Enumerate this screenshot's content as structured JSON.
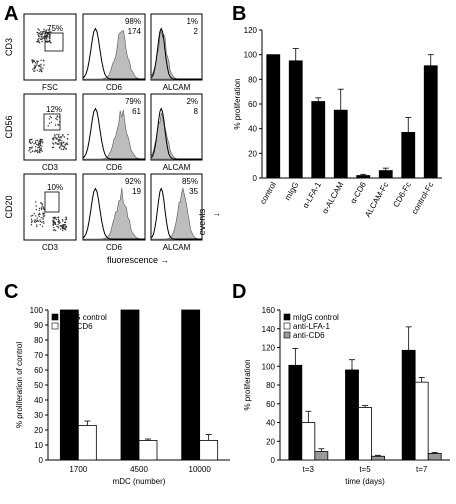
{
  "panel_letters": [
    "A",
    "B",
    "C",
    "D"
  ],
  "panel_a": {
    "rows": [
      {
        "y_label": "CD3",
        "dot_x_label": "FSC",
        "dot_pct": "75%",
        "cd6": {
          "pct": "98%",
          "mfi": "174"
        },
        "alcam": {
          "pct": "1%",
          "mfi": "2"
        }
      },
      {
        "y_label": "CD56",
        "dot_x_label": "CD3",
        "dot_pct": "12%",
        "cd6": {
          "pct": "79%",
          "mfi": "61"
        },
        "alcam": {
          "pct": "2%",
          "mfi": "8"
        }
      },
      {
        "y_label": "CD20",
        "dot_x_label": "CD3",
        "dot_pct": "10%",
        "cd6": {
          "pct": "92%",
          "mfi": "19"
        },
        "alcam": {
          "pct": "85%",
          "mfi": "35"
        }
      }
    ],
    "hist_labels": [
      "CD6",
      "ALCAM"
    ],
    "events_label": "events",
    "fluorescence_label": "fluorescence"
  },
  "chart_data": [
    {
      "panel": "B",
      "type": "bar",
      "categories": [
        "control",
        "mIgG",
        "α-LFA-1",
        "α-ALCAM",
        "α-CD6",
        "ALCAM-Fc",
        "CD6-Fc",
        "control-Fc"
      ],
      "values": [
        100,
        95,
        62,
        55,
        2,
        6,
        37,
        91
      ],
      "errors": [
        0,
        10,
        3,
        17,
        1,
        2,
        12,
        9
      ],
      "ylabel": "% proliferation",
      "ylim": [
        0,
        120
      ],
      "yticks": [
        0,
        20,
        40,
        60,
        80,
        100,
        120
      ],
      "colors": {
        "bar": "#000000"
      }
    },
    {
      "panel": "C",
      "type": "bar",
      "categories": [
        "1700",
        "4500",
        "10000"
      ],
      "series": [
        {
          "name": "mIgG control",
          "values": [
            100,
            100,
            100
          ],
          "errors": [
            0,
            0,
            0
          ],
          "color": "#000000"
        },
        {
          "name": "anti-CD6",
          "values": [
            23,
            13,
            13
          ],
          "errors": [
            3,
            1,
            4
          ],
          "color": "#ffffff"
        }
      ],
      "xlabel": "mDC (number)",
      "ylabel": "% proliferation of control",
      "ylim": [
        0,
        100
      ],
      "yticks": [
        0,
        10,
        20,
        30,
        40,
        50,
        60,
        70,
        80,
        90,
        100
      ],
      "legend_position": "top-left"
    },
    {
      "panel": "D",
      "type": "bar",
      "categories": [
        "t=3",
        "t=5",
        "t=7"
      ],
      "series": [
        {
          "name": "mIgG control",
          "values": [
            101,
            96,
            117
          ],
          "errors": [
            18,
            11,
            25
          ],
          "color": "#000000"
        },
        {
          "name": "anti-LFA-1",
          "values": [
            40,
            56,
            83
          ],
          "errors": [
            12,
            2,
            5
          ],
          "color": "#ffffff"
        },
        {
          "name": "anti-CD6",
          "values": [
            9,
            4,
            7
          ],
          "errors": [
            3,
            1,
            1
          ],
          "color": "#999999"
        }
      ],
      "xlabel": "time (days)",
      "ylabel": "% proliferation",
      "ylim": [
        0,
        160
      ],
      "yticks": [
        0,
        20,
        40,
        60,
        80,
        100,
        120,
        140,
        160
      ],
      "legend_position": "top-left"
    }
  ]
}
